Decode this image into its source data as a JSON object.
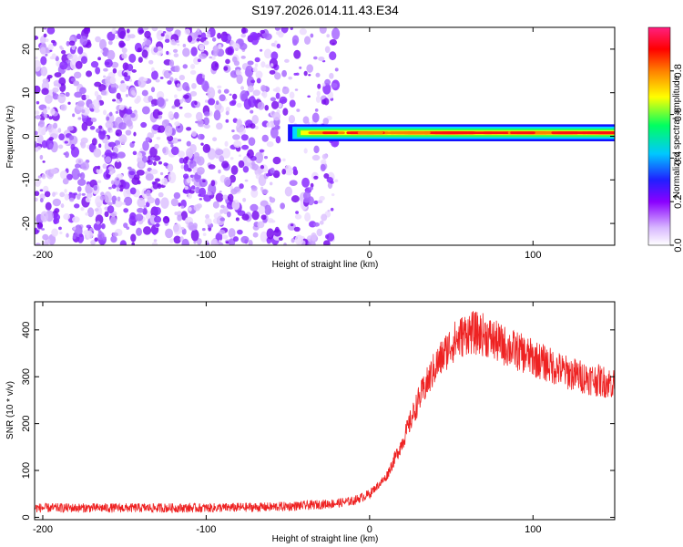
{
  "title": "S197.2026.014.11.43.E34",
  "chart_data": [
    {
      "type": "heatmap",
      "xlabel": "Height of straight line (km)",
      "ylabel": "Frequency (Hz)",
      "xlim": [
        -205,
        150
      ],
      "ylim": [
        -25,
        25
      ],
      "xticks": [
        -200,
        -100,
        0,
        100
      ],
      "yticks": [
        -20,
        -10,
        0,
        10,
        20
      ],
      "noise_region_x": [
        -205,
        -30
      ],
      "signal_band": {
        "x_start": -50,
        "x_end": 150,
        "frequency_center": 0.8,
        "bandwidth": 1.5
      },
      "colorbar": {
        "label": "Normalized spectral amplitude",
        "ticks": [
          0.0,
          0.2,
          0.4,
          0.6,
          0.8
        ],
        "tick_labels": [
          "0.0",
          "0.2",
          "0.4",
          "0.6",
          "0.8"
        ],
        "range": [
          0,
          1
        ]
      }
    },
    {
      "type": "line",
      "xlabel": "Height of straight line (km)",
      "ylabel": "SNR (10 * v/v)",
      "xlim": [
        -205,
        150
      ],
      "ylim": [
        -5,
        460
      ],
      "xticks": [
        -200,
        -100,
        0,
        100
      ],
      "yticks": [
        0,
        100,
        200,
        300,
        400
      ],
      "series": [
        {
          "name": "SNR",
          "color": "#ee2222",
          "x": [
            -205,
            -150,
            -100,
            -60,
            -40,
            -20,
            -10,
            0,
            10,
            20,
            30,
            40,
            50,
            60,
            70,
            80,
            90,
            100,
            110,
            120,
            130,
            140,
            150
          ],
          "y": [
            20,
            20,
            20,
            22,
            25,
            30,
            35,
            50,
            85,
            160,
            250,
            320,
            370,
            395,
            390,
            370,
            355,
            340,
            325,
            310,
            300,
            292,
            285
          ]
        }
      ]
    }
  ]
}
